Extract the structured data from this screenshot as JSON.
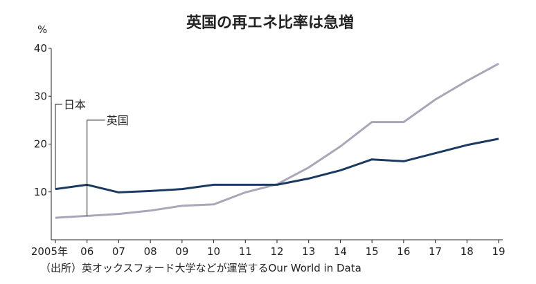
{
  "chart_data": {
    "type": "line",
    "title": "英国の再エネ比率は急増",
    "unit": "%",
    "x": [
      "2005年",
      "06",
      "07",
      "08",
      "09",
      "10",
      "11",
      "12",
      "13",
      "14",
      "15",
      "16",
      "17",
      "18",
      "19"
    ],
    "ylim": [
      0,
      40
    ],
    "yticks": [
      "10",
      "20",
      "30",
      "40"
    ],
    "grid": false,
    "series": [
      {
        "name": "日本",
        "color": "#1b3a61",
        "values": [
          10.6,
          11.5,
          9.9,
          10.2,
          10.6,
          11.5,
          11.5,
          11.5,
          12.8,
          14.5,
          16.8,
          16.4,
          18.1,
          19.8,
          21.1
        ]
      },
      {
        "name": "英国",
        "color": "#a9a6b8",
        "values": [
          4.6,
          5.0,
          5.4,
          6.1,
          7.1,
          7.4,
          9.9,
          11.6,
          15.1,
          19.5,
          24.6,
          24.6,
          29.3,
          33.2,
          36.8
        ]
      }
    ],
    "source": "（出所）英オックスフォード大学などが運営するOur World in Data"
  }
}
